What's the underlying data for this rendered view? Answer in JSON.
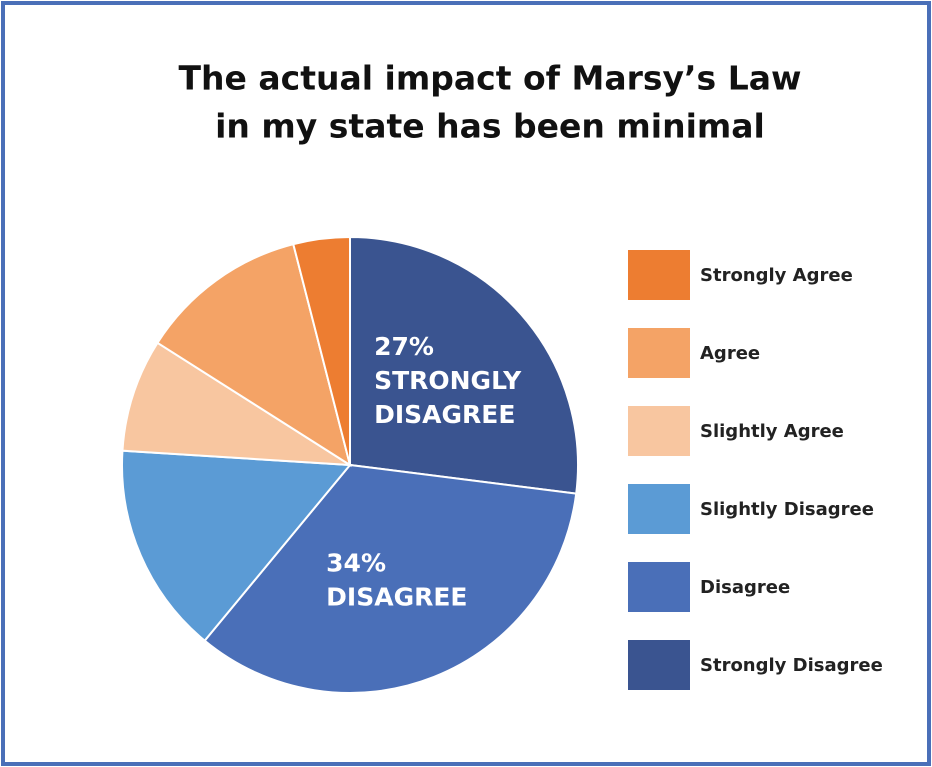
{
  "chart_data": {
    "type": "pie",
    "title_lines": [
      "The actual impact of Marsy’s Law",
      "in my state has been minimal"
    ],
    "categories": [
      "Strongly Agree",
      "Agree",
      "Slightly Agree",
      "Slightly Disagree",
      "Disagree",
      "Strongly Disagree"
    ],
    "values": [
      4,
      12,
      8,
      15,
      34,
      27
    ],
    "value_labels": [
      null,
      null,
      null,
      null,
      "34%",
      "27%"
    ],
    "slice_label_lines": [
      null,
      null,
      null,
      null,
      [
        "DISAGREE"
      ],
      [
        "STRONGLY",
        "DISAGREE"
      ]
    ],
    "colors": [
      "#ed7d31",
      "#f4a366",
      "#f8c6a0",
      "#5b9bd5",
      "#4a6fb8",
      "#3a5490"
    ],
    "legend": "right"
  }
}
